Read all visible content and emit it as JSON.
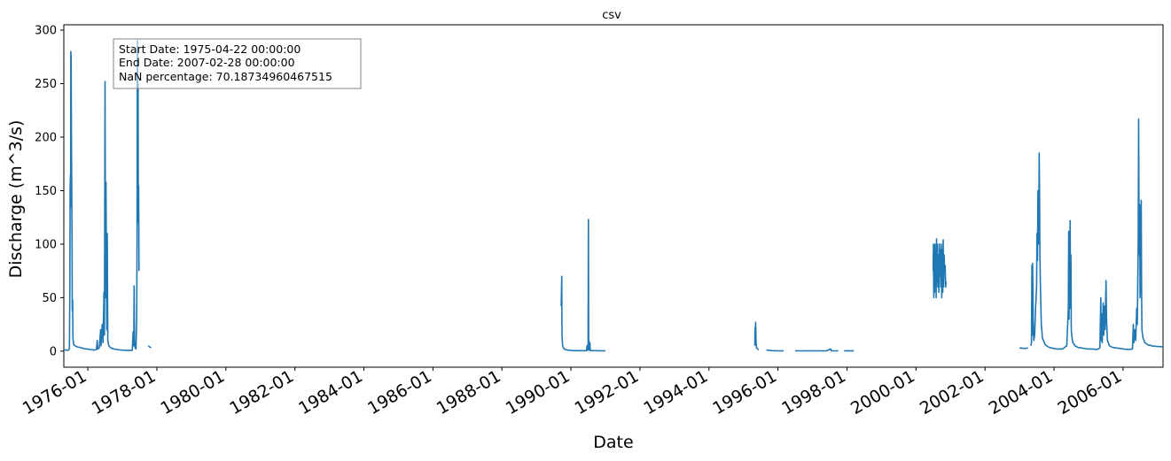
{
  "chart_data": {
    "type": "line",
    "title": "csv",
    "xlabel": "Date",
    "ylabel": "Discharge (m^3/s)",
    "xlim": [
      "1975-04-22",
      "2007-02-28"
    ],
    "ylim": [
      -15,
      305
    ],
    "yticks": [
      0,
      50,
      100,
      150,
      200,
      250,
      300
    ],
    "xticks": [
      "1976-01",
      "1978-01",
      "1980-01",
      "1982-01",
      "1984-01",
      "1986-01",
      "1988-01",
      "1990-01",
      "1992-01",
      "1994-01",
      "1996-01",
      "1998-01",
      "2000-01",
      "2002-01",
      "2004-01",
      "2006-01"
    ],
    "grid": false,
    "color": "#1f77b4",
    "annotation": {
      "lines": [
        "Start Date: 1975-04-22 00:00:00",
        "End Date: 2007-02-28 00:00:00",
        "NaN percentage: 70.18734960467515"
      ],
      "placement": "top-left"
    },
    "series": [
      {
        "segments": [
          [
            [
              "1975-04-22",
              1
            ],
            [
              "1975-05-15",
              1
            ],
            [
              "1975-06-05",
              0.8
            ],
            [
              "1975-06-20",
              2
            ],
            [
              "1975-06-25",
              60
            ],
            [
              "1975-06-28",
              150
            ],
            [
              "1975-07-01",
              165
            ],
            [
              "1975-07-03",
              135
            ],
            [
              "1975-07-05",
              280
            ],
            [
              "1975-07-08",
              275
            ],
            [
              "1975-07-12",
              200
            ],
            [
              "1975-07-15",
              140
            ],
            [
              "1975-07-18",
              100
            ],
            [
              "1975-07-20",
              38
            ],
            [
              "1975-07-24",
              48
            ],
            [
              "1975-07-28",
              12
            ],
            [
              "1975-08-05",
              6
            ],
            [
              "1975-08-20",
              5
            ],
            [
              "1975-09-10",
              4
            ],
            [
              "1975-10-10",
              3.5
            ],
            [
              "1975-11-15",
              2.5
            ],
            [
              "1975-12-20",
              2
            ],
            [
              "1976-02-01",
              1.5
            ],
            [
              "1976-03-10",
              1
            ],
            [
              "1976-04-01",
              1.5
            ],
            [
              "1976-04-10",
              10
            ],
            [
              "1976-04-14",
              2
            ],
            [
              "1976-05-01",
              3
            ],
            [
              "1976-05-15",
              20
            ],
            [
              "1976-05-20",
              5
            ],
            [
              "1976-06-01",
              25
            ],
            [
              "1976-06-10",
              8
            ],
            [
              "1976-06-20",
              55
            ],
            [
              "1976-06-25",
              15
            ],
            [
              "1976-07-01",
              252
            ],
            [
              "1976-07-04",
              150
            ],
            [
              "1976-07-08",
              50
            ],
            [
              "1976-07-12",
              158
            ],
            [
              "1976-07-15",
              80
            ],
            [
              "1976-07-20",
              20
            ],
            [
              "1976-07-25",
              110
            ],
            [
              "1976-07-30",
              10
            ],
            [
              "1976-08-10",
              5
            ],
            [
              "1976-09-01",
              3
            ],
            [
              "1976-10-01",
              2
            ],
            [
              "1976-11-01",
              1.5
            ],
            [
              "1976-12-15",
              1
            ],
            [
              "1977-02-01",
              0.8
            ],
            [
              "1977-04-15",
              0.8
            ],
            [
              "1977-04-25",
              18
            ],
            [
              "1977-05-01",
              5
            ],
            [
              "1977-05-05",
              61
            ],
            [
              "1977-05-10",
              10
            ],
            [
              "1977-05-15",
              3
            ],
            [
              "1977-05-25",
              2
            ],
            [
              "1977-06-01",
              30
            ],
            [
              "1977-06-05",
              100
            ],
            [
              "1977-06-08",
              250
            ],
            [
              "1977-06-10",
              290
            ],
            [
              "1977-06-13",
              200
            ],
            [
              "1977-06-16",
              250
            ],
            [
              "1977-06-18",
              120
            ],
            [
              "1977-06-22",
              155
            ],
            [
              "1977-06-26",
              75
            ]
          ],
          [
            [
              "1977-10-01",
              5
            ],
            [
              "1977-10-15",
              4
            ],
            [
              "1977-11-01",
              3
            ]
          ],
          [
            [
              "1989-09-20",
              42
            ],
            [
              "1989-09-25",
              70
            ],
            [
              "1989-09-28",
              15
            ],
            [
              "1989-10-05",
              5
            ],
            [
              "1989-10-20",
              2
            ],
            [
              "1989-11-20",
              1
            ],
            [
              "1990-02-01",
              0.5
            ],
            [
              "1990-04-01",
              0.5
            ],
            [
              "1990-06-15",
              0.5
            ],
            [
              "1990-06-20",
              5
            ],
            [
              "1990-06-23",
              1
            ],
            [
              "1990-07-01",
              1
            ],
            [
              "1990-07-05",
              123
            ],
            [
              "1990-07-08",
              3
            ],
            [
              "1990-07-10",
              10
            ],
            [
              "1990-07-14",
              1
            ],
            [
              "1990-07-20",
              8
            ],
            [
              "1990-07-25",
              0.5
            ],
            [
              "1990-09-01",
              0.5
            ],
            [
              "1991-01-01",
              0.3
            ]
          ],
          [
            [
              "1995-05-01",
              5
            ],
            [
              "1995-05-04",
              22
            ],
            [
              "1995-05-07",
              10
            ],
            [
              "1995-05-10",
              27
            ],
            [
              "1995-05-14",
              8
            ],
            [
              "1995-05-20",
              3
            ],
            [
              "1995-06-10",
              1
            ]
          ],
          [
            [
              "1995-09-01",
              1
            ],
            [
              "1995-11-01",
              0.5
            ],
            [
              "1996-01-01",
              0.3
            ],
            [
              "1996-03-01",
              0.3
            ]
          ],
          [
            [
              "1996-07-01",
              0.3
            ],
            [
              "1997-02-01",
              0.3
            ],
            [
              "1997-06-01",
              0.3
            ],
            [
              "1997-07-10",
              2
            ],
            [
              "1997-07-20",
              0.3
            ],
            [
              "1997-10-01",
              0.3
            ]
          ],
          [
            [
              "1997-12-01",
              0.3
            ],
            [
              "1998-03-15",
              0.3
            ]
          ],
          [
            [
              "2000-07-01",
              75
            ],
            [
              "2000-07-04",
              100
            ],
            [
              "2000-07-08",
              50
            ],
            [
              "2000-07-12",
              95
            ],
            [
              "2000-07-16",
              55
            ],
            [
              "2000-07-20",
              100
            ],
            [
              "2000-07-24",
              60
            ],
            [
              "2000-07-28",
              90
            ],
            [
              "2000-08-02",
              50
            ],
            [
              "2000-08-06",
              105
            ],
            [
              "2000-08-10",
              65
            ],
            [
              "2000-08-15",
              100
            ],
            [
              "2000-08-20",
              60
            ],
            [
              "2000-08-25",
              90
            ],
            [
              "2000-08-30",
              55
            ],
            [
              "2000-09-05",
              100
            ],
            [
              "2000-09-10",
              70
            ],
            [
              "2000-09-15",
              95
            ],
            [
              "2000-09-20",
              60
            ],
            [
              "2000-09-25",
              100
            ],
            [
              "2000-09-30",
              50
            ],
            [
              "2000-10-05",
              95
            ],
            [
              "2000-10-10",
              55
            ],
            [
              "2000-10-15",
              104
            ],
            [
              "2000-10-20",
              60
            ],
            [
              "2000-10-25",
              90
            ],
            [
              "2000-10-30",
              75
            ],
            [
              "2000-11-05",
              80
            ],
            [
              "2000-11-10",
              60
            ],
            [
              "2000-11-15",
              65
            ]
          ],
          [
            [
              "2003-01-01",
              3
            ],
            [
              "2003-03-01",
              2.5
            ],
            [
              "2003-04-01",
              3
            ]
          ],
          [
            [
              "2003-05-01",
              5
            ],
            [
              "2003-05-08",
              8
            ],
            [
              "2003-05-12",
              80
            ],
            [
              "2003-05-16",
              15
            ],
            [
              "2003-05-20",
              82
            ],
            [
              "2003-05-25",
              30
            ],
            [
              "2003-06-01",
              10
            ],
            [
              "2003-06-10",
              15
            ],
            [
              "2003-06-20",
              40
            ],
            [
              "2003-07-01",
              60
            ],
            [
              "2003-07-05",
              110
            ],
            [
              "2003-07-10",
              85
            ],
            [
              "2003-07-15",
              150
            ],
            [
              "2003-07-20",
              100
            ],
            [
              "2003-07-25",
              140
            ],
            [
              "2003-07-28",
              185
            ],
            [
              "2003-08-01",
              150
            ],
            [
              "2003-08-05",
              90
            ],
            [
              "2003-08-10",
              60
            ],
            [
              "2003-08-20",
              25
            ],
            [
              "2003-09-01",
              12
            ],
            [
              "2003-10-01",
              6
            ],
            [
              "2003-11-01",
              4
            ],
            [
              "2003-12-01",
              3
            ],
            [
              "2004-02-01",
              2
            ],
            [
              "2004-04-01",
              2
            ],
            [
              "2004-05-15",
              5
            ],
            [
              "2004-06-01",
              40
            ],
            [
              "2004-06-05",
              112
            ],
            [
              "2004-06-08",
              30
            ],
            [
              "2004-06-12",
              105
            ],
            [
              "2004-06-16",
              40
            ],
            [
              "2004-06-20",
              122
            ],
            [
              "2004-06-24",
              45
            ],
            [
              "2004-06-28",
              90
            ],
            [
              "2004-07-02",
              20
            ],
            [
              "2004-07-10",
              12
            ],
            [
              "2004-07-20",
              8
            ],
            [
              "2004-08-10",
              5
            ],
            [
              "2004-09-10",
              3.5
            ],
            [
              "2004-10-15",
              3
            ],
            [
              "2004-12-15",
              2
            ],
            [
              "2005-02-15",
              2
            ],
            [
              "2005-04-01",
              1.5
            ],
            [
              "2005-05-01",
              3
            ],
            [
              "2005-05-10",
              50
            ],
            [
              "2005-05-14",
              10
            ],
            [
              "2005-05-20",
              35
            ],
            [
              "2005-05-25",
              8
            ],
            [
              "2005-06-05",
              45
            ],
            [
              "2005-06-10",
              15
            ],
            [
              "2005-06-20",
              42
            ],
            [
              "2005-06-25",
              20
            ],
            [
              "2005-07-05",
              66
            ],
            [
              "2005-07-10",
              30
            ],
            [
              "2005-07-20",
              10
            ],
            [
              "2005-08-10",
              5
            ],
            [
              "2005-09-10",
              3.5
            ],
            [
              "2005-10-15",
              3
            ],
            [
              "2005-12-01",
              2.5
            ],
            [
              "2006-01-01",
              2
            ],
            [
              "2006-03-01",
              1.5
            ],
            [
              "2006-04-10",
              2
            ],
            [
              "2006-04-20",
              25
            ],
            [
              "2006-04-25",
              8
            ],
            [
              "2006-05-05",
              20
            ],
            [
              "2006-05-15",
              10
            ],
            [
              "2006-05-25",
              40
            ],
            [
              "2006-06-01",
              25
            ],
            [
              "2006-06-10",
              100
            ],
            [
              "2006-06-15",
              217
            ],
            [
              "2006-06-18",
              150
            ],
            [
              "2006-06-22",
              90
            ],
            [
              "2006-06-26",
              137
            ],
            [
              "2006-06-30",
              50
            ],
            [
              "2006-07-04",
              103
            ],
            [
              "2006-07-08",
              55
            ],
            [
              "2006-07-12",
              141
            ],
            [
              "2006-07-16",
              60
            ],
            [
              "2006-07-20",
              20
            ],
            [
              "2006-08-01",
              12
            ],
            [
              "2006-08-20",
              8
            ],
            [
              "2006-09-20",
              6
            ],
            [
              "2006-11-01",
              5
            ],
            [
              "2006-12-15",
              4.5
            ],
            [
              "2007-02-28",
              4
            ]
          ]
        ]
      }
    ]
  }
}
